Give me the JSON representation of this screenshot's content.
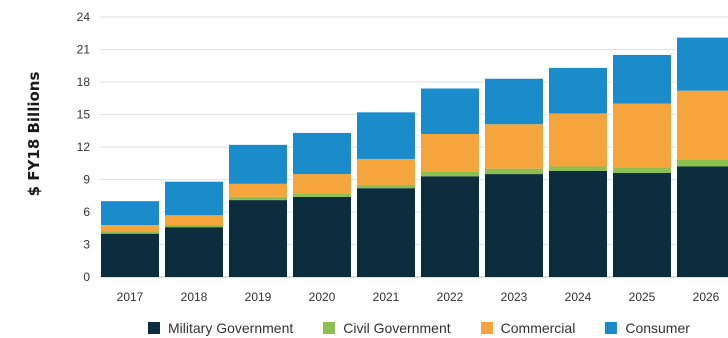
{
  "chart_data": {
    "type": "bar",
    "stacked": true,
    "categories": [
      "2017",
      "2018",
      "2019",
      "2020",
      "2021",
      "2022",
      "2023",
      "2024",
      "2025",
      "2026"
    ],
    "series": [
      {
        "name": "Military Government",
        "color": "#0b2d3e",
        "values": [
          4.0,
          4.6,
          7.1,
          7.4,
          8.2,
          9.3,
          9.5,
          9.8,
          9.6,
          10.2
        ]
      },
      {
        "name": "Civil Government",
        "color": "#8dbf4e",
        "values": [
          0.2,
          0.2,
          0.3,
          0.3,
          0.3,
          0.4,
          0.5,
          0.4,
          0.5,
          0.6
        ]
      },
      {
        "name": "Commercial",
        "color": "#f6a43c",
        "values": [
          0.6,
          0.9,
          1.2,
          1.8,
          2.4,
          3.5,
          4.1,
          4.9,
          5.9,
          6.4
        ]
      },
      {
        "name": "Consumer",
        "color": "#1a8ccc",
        "values": [
          2.2,
          3.1,
          3.6,
          3.8,
          4.3,
          4.2,
          4.2,
          4.2,
          4.5,
          4.9
        ]
      }
    ],
    "ylabel": "$ FY18 Billions",
    "xlabel": "",
    "yticks": [
      0,
      3,
      6,
      9,
      12,
      15,
      18,
      21,
      24
    ],
    "ylim": [
      0,
      24
    ],
    "grid": true,
    "legend_position": "bottom"
  }
}
